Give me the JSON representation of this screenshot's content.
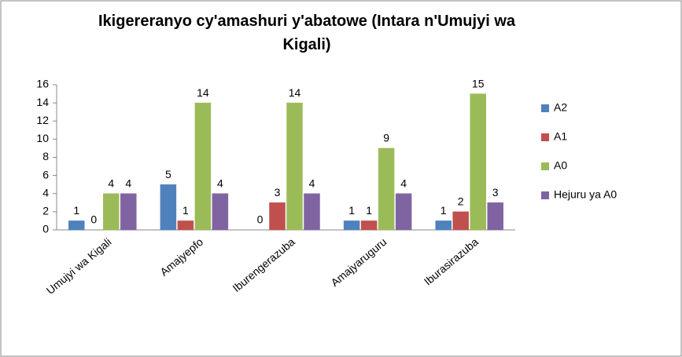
{
  "chart_data": {
    "type": "bar",
    "title": "Ikigereranyo cy'amashuri y'abatowe  (Intara n'Umujyi wa Kigali)",
    "categories": [
      "Umujyi wa Kigali",
      "Amajyepfo",
      "Iburengerazuba",
      "Amajyaruguru",
      "Iburasirazuba"
    ],
    "series": [
      {
        "name": "A2",
        "color": "#4f81bd",
        "values": [
          1,
          5,
          0,
          1,
          1
        ]
      },
      {
        "name": "A1",
        "color": "#c0504d",
        "values": [
          0,
          1,
          3,
          1,
          2
        ]
      },
      {
        "name": "A0",
        "color": "#9bbb59",
        "values": [
          4,
          14,
          14,
          9,
          15
        ]
      },
      {
        "name": "Hejuru ya A0",
        "color": "#8064a2",
        "values": [
          4,
          4,
          4,
          4,
          3
        ]
      }
    ],
    "ylim": [
      0,
      16
    ],
    "yticks": [
      0,
      2,
      4,
      6,
      8,
      10,
      12,
      14,
      16
    ],
    "grid": false,
    "legend": "right"
  }
}
